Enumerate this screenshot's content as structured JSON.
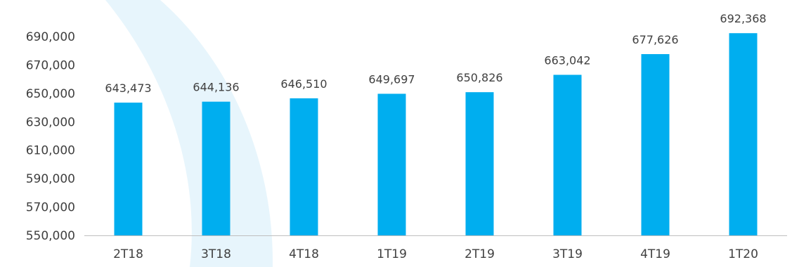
{
  "colors": {
    "bar": "#00AEEF",
    "background_arc": "#E7F5FC",
    "axis_line": "#BFBFBF",
    "text": "#404040"
  },
  "chart_data": {
    "type": "bar",
    "categories": [
      "2T18",
      "3T18",
      "4T18",
      "1T19",
      "2T19",
      "3T19",
      "4T19",
      "1T20"
    ],
    "series": [
      {
        "values": [
          643473,
          644136,
          646510,
          649697,
          650826,
          663042,
          677626,
          692368
        ]
      }
    ],
    "data_labels": [
      "643,473",
      "644,136",
      "646,510",
      "649,697",
      "650,826",
      "663,042",
      "677,626",
      "692,368"
    ],
    "y_ticks": [
      550000,
      570000,
      590000,
      610000,
      630000,
      650000,
      670000,
      690000
    ],
    "y_tick_labels": [
      "550,000",
      "570,000",
      "590,000",
      "610,000",
      "630,000",
      "650,000",
      "670,000",
      "690,000"
    ],
    "ylim": [
      550000,
      700000
    ],
    "title": "",
    "xlabel": "",
    "ylabel": "",
    "grid": false,
    "legend": "none"
  }
}
